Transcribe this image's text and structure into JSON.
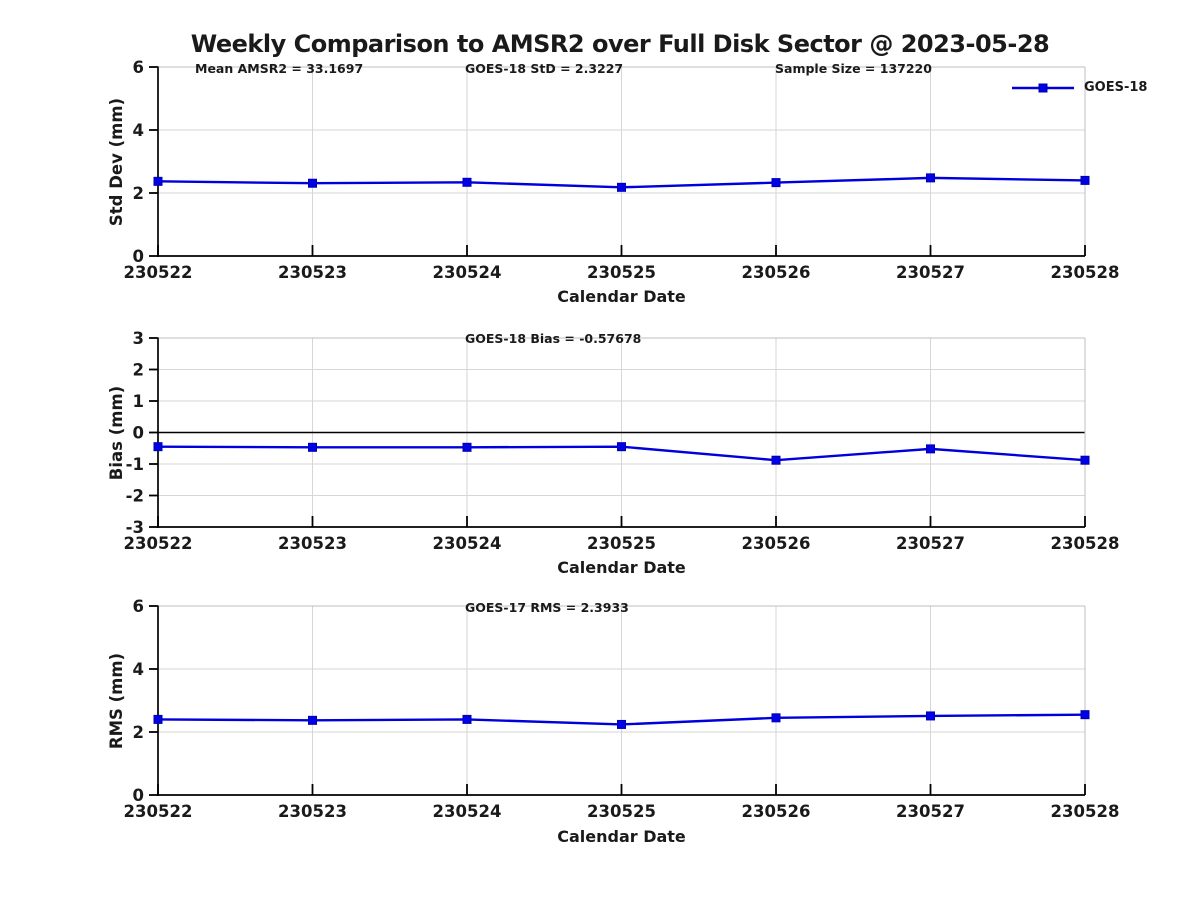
{
  "title": "Weekly Comparison to AMSR2 over Full Disk Sector @ 2023-05-28",
  "legend": {
    "label": "GOES-18"
  },
  "colors": {
    "line": "#0000dd",
    "marker_fill": "#0101e6",
    "marker_edge": "#0000b0",
    "grid": "#d6d6d6",
    "box": "#bfbfbf",
    "axis": "#000000",
    "text": "#1a1a1a"
  },
  "chart_data": [
    {
      "type": "line",
      "annotations": [
        "Mean AMSR2 = 33.1697",
        "GOES-18 StD = 2.3227",
        "Sample Size = 137220"
      ],
      "xlabel": "Calendar Date",
      "ylabel": "Std Dev (mm)",
      "categories": [
        "230522",
        "230523",
        "230524",
        "230525",
        "230526",
        "230527",
        "230528"
      ],
      "yticks": [
        0,
        2,
        4,
        6
      ],
      "ylim": [
        0,
        6
      ],
      "grid": true,
      "legend_position": "top-right",
      "series": [
        {
          "name": "GOES-18",
          "values": [
            2.37,
            2.31,
            2.34,
            2.18,
            2.33,
            2.48,
            2.4
          ]
        }
      ]
    },
    {
      "type": "line",
      "annotations": [
        "GOES-18 Bias  = -0.57678"
      ],
      "xlabel": "Calendar Date",
      "ylabel": "Bias (mm)",
      "categories": [
        "230522",
        "230523",
        "230524",
        "230525",
        "230526",
        "230527",
        "230528"
      ],
      "yticks": [
        -3,
        -2,
        -1,
        0,
        1,
        2,
        3
      ],
      "ylim": [
        -3,
        3
      ],
      "grid": true,
      "series": [
        {
          "name": "GOES-18",
          "values": [
            -0.45,
            -0.47,
            -0.47,
            -0.45,
            -0.88,
            -0.52,
            -0.88
          ]
        }
      ]
    },
    {
      "type": "line",
      "annotations": [
        "GOES-17 RMS = 2.3933"
      ],
      "xlabel": "Calendar Date",
      "ylabel": "RMS (mm)",
      "categories": [
        "230522",
        "230523",
        "230524",
        "230525",
        "230526",
        "230527",
        "230528"
      ],
      "yticks": [
        0,
        2,
        4,
        6
      ],
      "ylim": [
        0,
        6
      ],
      "grid": true,
      "series": [
        {
          "name": "GOES-18",
          "values": [
            2.4,
            2.37,
            2.4,
            2.24,
            2.45,
            2.51,
            2.55
          ]
        }
      ]
    }
  ]
}
